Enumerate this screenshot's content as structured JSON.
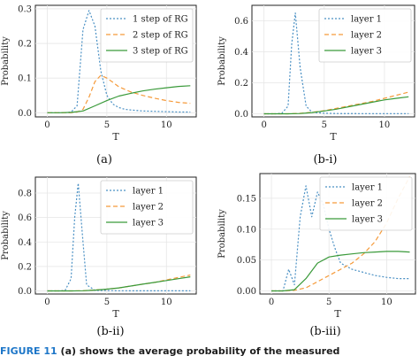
{
  "colors": {
    "blue": "#4a90c4",
    "orange": "#f59a3a",
    "green": "#3a9a3a",
    "axis": "#222222",
    "grid": "#e6e6e6",
    "caption_accent": "#1d76c8"
  },
  "footer": {
    "fig_label": "FIGURE 11",
    "text": "(a) shows the average probability of the measured"
  },
  "chart_data": [
    {
      "type": "line",
      "caption": "(a)",
      "xlabel": "T",
      "ylabel": "Probability",
      "xlim": [
        -1,
        12.5
      ],
      "ylim": [
        -0.012,
        0.31
      ],
      "xticks": [
        0,
        5,
        10
      ],
      "yticks": [
        0.0,
        0.1,
        0.2,
        0.3
      ],
      "xtick_labels": [
        "0",
        "5",
        "10"
      ],
      "ytick_labels": [
        "0.0",
        "0.1",
        "0.2",
        "0.3"
      ],
      "legend_position": "top-right",
      "grid": true,
      "series": [
        {
          "name": "1 step of RG",
          "style": "dotted",
          "color": "#4a90c4",
          "x": [
            0,
            0.5,
            1,
            1.5,
            2,
            2.5,
            3,
            3.5,
            4,
            4.5,
            5,
            5.5,
            6,
            6.5,
            7,
            8,
            9,
            10,
            11,
            12
          ],
          "y": [
            0,
            0,
            0,
            0,
            0.002,
            0.02,
            0.24,
            0.295,
            0.25,
            0.12,
            0.05,
            0.025,
            0.015,
            0.01,
            0.008,
            0.005,
            0.004,
            0.003,
            0.002,
            0.002
          ]
        },
        {
          "name": "2 step of RG",
          "style": "dashed",
          "color": "#f59a3a",
          "x": [
            0,
            1,
            2,
            2.5,
            3,
            3.5,
            4,
            4.5,
            5,
            5.5,
            6,
            7,
            8,
            9,
            10,
            11,
            12
          ],
          "y": [
            0,
            0,
            0,
            0.002,
            0.01,
            0.045,
            0.09,
            0.108,
            0.1,
            0.088,
            0.075,
            0.06,
            0.05,
            0.042,
            0.035,
            0.03,
            0.027
          ]
        },
        {
          "name": "3 step of RG",
          "style": "solid",
          "color": "#3a9a3a",
          "x": [
            0,
            1,
            2,
            3,
            4,
            5,
            6,
            7,
            8,
            9,
            10,
            11,
            12
          ],
          "y": [
            0,
            0,
            0.001,
            0.005,
            0.02,
            0.035,
            0.048,
            0.056,
            0.063,
            0.068,
            0.072,
            0.076,
            0.078
          ]
        }
      ]
    },
    {
      "type": "line",
      "caption": "(b-i)",
      "xlabel": "T",
      "ylabel": "Probability",
      "xlim": [
        -1,
        12.5
      ],
      "ylim": [
        -0.02,
        0.7
      ],
      "xticks": [
        0,
        5,
        10
      ],
      "yticks": [
        0.0,
        0.2,
        0.4,
        0.6
      ],
      "xtick_labels": [
        "0",
        "5",
        "10"
      ],
      "ytick_labels": [
        "0.0",
        "0.2",
        "0.4",
        "0.6"
      ],
      "legend_position": "top-right",
      "grid": true,
      "series": [
        {
          "name": "layer 1",
          "style": "dotted",
          "color": "#4a90c4",
          "x": [
            0,
            1,
            1.5,
            2,
            2.3,
            2.6,
            3,
            3.5,
            4,
            5,
            6,
            8,
            10,
            12
          ],
          "y": [
            0,
            0,
            0.005,
            0.05,
            0.45,
            0.65,
            0.3,
            0.05,
            0.01,
            0.004,
            0.002,
            0.001,
            0.001,
            0.001
          ]
        },
        {
          "name": "layer 2",
          "style": "dashed",
          "color": "#f59a3a",
          "x": [
            0,
            2,
            3,
            4,
            5,
            6,
            7,
            8,
            9,
            10,
            11,
            12
          ],
          "y": [
            0,
            0,
            0.003,
            0.01,
            0.02,
            0.035,
            0.05,
            0.065,
            0.08,
            0.1,
            0.12,
            0.14
          ]
        },
        {
          "name": "layer 3",
          "style": "solid",
          "color": "#3a9a3a",
          "x": [
            0,
            2,
            3,
            4,
            5,
            6,
            7,
            8,
            9,
            10,
            11,
            12
          ],
          "y": [
            0,
            0,
            0.002,
            0.008,
            0.018,
            0.03,
            0.045,
            0.06,
            0.075,
            0.09,
            0.1,
            0.11
          ]
        }
      ]
    },
    {
      "type": "line",
      "caption": "(b-ii)",
      "xlabel": "T",
      "ylabel": "Probability",
      "xlim": [
        -1,
        12.5
      ],
      "ylim": [
        -0.025,
        0.93
      ],
      "xticks": [
        0,
        5,
        10
      ],
      "yticks": [
        0.0,
        0.2,
        0.4,
        0.6,
        0.8
      ],
      "xtick_labels": [
        "0",
        "5",
        "10"
      ],
      "ytick_labels": [
        "0.0",
        "0.2",
        "0.4",
        "0.6",
        "0.8"
      ],
      "legend_position": "top-right",
      "grid": true,
      "series": [
        {
          "name": "layer 1",
          "style": "dotted",
          "color": "#4a90c4",
          "x": [
            0,
            1,
            1.5,
            2,
            2.3,
            2.6,
            3,
            3.3,
            4,
            6,
            8,
            10,
            12
          ],
          "y": [
            0,
            0,
            0.005,
            0.1,
            0.6,
            0.88,
            0.4,
            0.05,
            0.005,
            0.002,
            0.001,
            0.001,
            0.001
          ]
        },
        {
          "name": "layer 2",
          "style": "dashed",
          "color": "#f59a3a",
          "x": [
            0,
            2,
            3,
            4,
            5,
            6,
            7,
            8,
            9,
            10,
            11,
            12
          ],
          "y": [
            0,
            0,
            0.002,
            0.008,
            0.015,
            0.025,
            0.04,
            0.055,
            0.07,
            0.09,
            0.11,
            0.13
          ]
        },
        {
          "name": "layer 3",
          "style": "solid",
          "color": "#3a9a3a",
          "x": [
            0,
            2,
            3,
            4,
            5,
            6,
            7,
            8,
            9,
            10,
            11,
            12
          ],
          "y": [
            0,
            0,
            0.002,
            0.007,
            0.015,
            0.025,
            0.04,
            0.055,
            0.07,
            0.085,
            0.1,
            0.115
          ]
        }
      ]
    },
    {
      "type": "line",
      "caption": "(b-iii)",
      "xlabel": "T",
      "ylabel": "Probability",
      "xlim": [
        -1,
        12.5
      ],
      "ylim": [
        -0.005,
        0.19
      ],
      "xticks": [
        0,
        5,
        10
      ],
      "yticks": [
        0.0,
        0.05,
        0.1,
        0.15
      ],
      "xtick_labels": [
        "0",
        "5",
        "10"
      ],
      "ytick_labels": [
        "0.00",
        "0.05",
        "0.10",
        "0.15"
      ],
      "legend_position": "top-right",
      "grid": true,
      "series": [
        {
          "name": "layer 1",
          "style": "dotted",
          "color": "#4a90c4",
          "x": [
            0,
            1,
            1.5,
            2,
            2.5,
            3,
            3.5,
            4,
            4.5,
            5,
            5.5,
            6,
            7,
            8,
            9,
            10,
            11,
            12
          ],
          "y": [
            0,
            0,
            0.035,
            0.01,
            0.12,
            0.17,
            0.12,
            0.16,
            0.14,
            0.1,
            0.07,
            0.045,
            0.035,
            0.03,
            0.025,
            0.022,
            0.02,
            0.02
          ]
        },
        {
          "name": "layer 2",
          "style": "dashed",
          "color": "#f59a3a",
          "x": [
            0,
            1,
            2,
            3,
            4,
            5,
            6,
            7,
            8,
            9,
            10,
            11,
            12
          ],
          "y": [
            0,
            0,
            0.001,
            0.005,
            0.015,
            0.025,
            0.035,
            0.045,
            0.06,
            0.08,
            0.11,
            0.15,
            0.185
          ]
        },
        {
          "name": "layer 3",
          "style": "solid",
          "color": "#3a9a3a",
          "x": [
            0,
            1,
            2,
            3,
            4,
            5,
            6,
            7,
            8,
            9,
            10,
            11,
            12
          ],
          "y": [
            0,
            0,
            0.002,
            0.02,
            0.045,
            0.055,
            0.058,
            0.06,
            0.062,
            0.063,
            0.064,
            0.064,
            0.063
          ]
        }
      ]
    }
  ]
}
